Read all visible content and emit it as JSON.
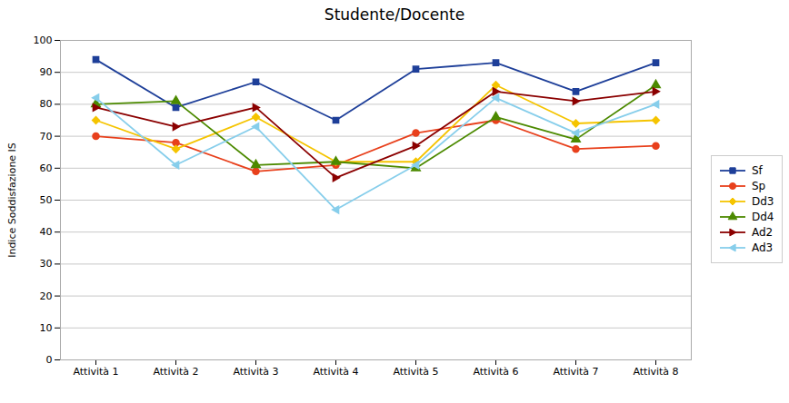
{
  "chart_data": {
    "type": "line",
    "title": "Studente/Docente",
    "ylabel": "Indice Soddisfazione IS",
    "categories": [
      "Attività 1",
      "Attività 2",
      "Attività 3",
      "Attività 4",
      "Attività 5",
      "Attività 6",
      "Attività 7",
      "Attività 8"
    ],
    "series": [
      {
        "name": "Sf",
        "color": "#1E3F99",
        "marker": "square",
        "values": [
          94,
          79,
          87,
          75,
          91,
          93,
          84,
          93
        ]
      },
      {
        "name": "Sp",
        "color": "#E8401C",
        "marker": "circle",
        "values": [
          70,
          68,
          59,
          61,
          71,
          75,
          66,
          67
        ]
      },
      {
        "name": "Dd3",
        "color": "#F5C400",
        "marker": "diamond",
        "values": [
          75,
          66,
          76,
          62,
          62,
          86,
          74,
          75
        ]
      },
      {
        "name": "Dd4",
        "color": "#4C8A00",
        "marker": "triangle-up",
        "values": [
          80,
          81,
          61,
          62,
          60,
          76,
          69,
          86
        ]
      },
      {
        "name": "Ad2",
        "color": "#8B0000",
        "marker": "triangle-right",
        "values": [
          79,
          73,
          79,
          57,
          67,
          84,
          81,
          84
        ]
      },
      {
        "name": "Ad3",
        "color": "#87CEEB",
        "marker": "triangle-left",
        "values": [
          82,
          61,
          73,
          47,
          61,
          82,
          71,
          80
        ]
      }
    ],
    "ylim": [
      0,
      100
    ],
    "yticks": [
      0,
      10,
      20,
      30,
      40,
      50,
      60,
      70,
      80,
      90,
      100
    ],
    "grid": true,
    "legend": "right"
  }
}
